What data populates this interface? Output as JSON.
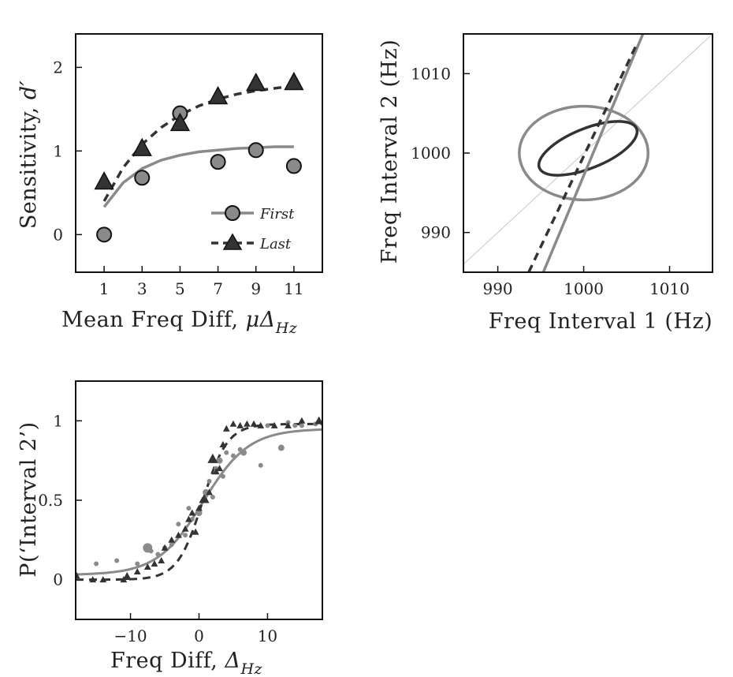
{
  "colors": {
    "first": "#8a8a8a",
    "last": "#333333",
    "ink": "#111111",
    "diag": "#c8c8c8"
  },
  "chart_data": [
    {
      "id": "sensitivity",
      "type": "scatter",
      "xlabel": "Mean Freq Diff, ",
      "xlabel_math": "μΔ",
      "xlabel_sub": "Hz",
      "ylabel": "Sensitivity, ",
      "ylabel_math": "d′",
      "xlim": [
        -0.5,
        12.5
      ],
      "ylim": [
        -0.45,
        2.4
      ],
      "xticks": [
        1,
        3,
        5,
        7,
        9,
        11
      ],
      "yticks": [
        0,
        1,
        2
      ],
      "legend_position": "bottom-right",
      "series": [
        {
          "name": "First",
          "marker": "circle",
          "line": "solid",
          "x": [
            1,
            3,
            5,
            7,
            9,
            11
          ],
          "y": [
            0.0,
            0.68,
            1.45,
            0.87,
            1.01,
            0.82
          ],
          "fit_x": [
            1,
            2,
            3,
            4,
            5,
            6,
            7,
            8,
            9,
            10,
            11
          ],
          "fit_y": [
            0.33,
            0.62,
            0.79,
            0.89,
            0.95,
            0.99,
            1.01,
            1.03,
            1.04,
            1.05,
            1.05
          ]
        },
        {
          "name": "Last",
          "marker": "triangle",
          "line": "dashed",
          "x": [
            1,
            3,
            5,
            7,
            9,
            11
          ],
          "y": [
            0.63,
            1.03,
            1.33,
            1.65,
            1.81,
            1.82
          ],
          "fit_x": [
            1,
            2,
            3,
            4,
            5,
            6,
            7,
            8,
            9,
            10,
            11
          ],
          "fit_y": [
            0.4,
            0.8,
            1.08,
            1.28,
            1.43,
            1.54,
            1.62,
            1.68,
            1.72,
            1.75,
            1.78
          ]
        }
      ]
    },
    {
      "id": "ellipses",
      "type": "line",
      "xlabel": "Freq Interval 1 (Hz)",
      "ylabel": "Freq Interval 2 (Hz)",
      "xlim": [
        986,
        1015
      ],
      "ylim": [
        985,
        1015
      ],
      "xticks": [
        990,
        1000,
        1010
      ],
      "yticks": [
        990,
        1000,
        1010
      ],
      "reference_diagonal": true,
      "ellipses": [
        {
          "name": "First",
          "cx": 1000,
          "cy": 1000,
          "rx": 7.5,
          "ry": 5.9,
          "angle_deg": 0
        },
        {
          "name": "Last",
          "cx": 1000.5,
          "cy": 1000.6,
          "rx": 6.1,
          "ry": 2.5,
          "angle_deg": 22
        }
      ],
      "boundaries": [
        {
          "name": "First",
          "line": "solid",
          "x": [
            995.3,
            1006.9
          ],
          "y": [
            985,
            1015
          ]
        },
        {
          "name": "Last",
          "line": "dashed",
          "x": [
            993.6,
            1006.3
          ],
          "y": [
            985,
            1014
          ]
        }
      ]
    },
    {
      "id": "psychometric",
      "type": "scatter",
      "xlabel": "Freq Diff, ",
      "xlabel_math": "Δ",
      "xlabel_sub": "Hz",
      "ylabel": "P(‘Interval 2’)",
      "xlim": [
        -18,
        18
      ],
      "ylim": [
        -0.25,
        1.25
      ],
      "xticks": [
        -10,
        0,
        10
      ],
      "ytick_values": [
        0,
        0.5,
        1
      ],
      "ytick_labels": [
        "0",
        "0.5",
        "1"
      ],
      "series": [
        {
          "name": "First",
          "marker": "circle",
          "line": "solid",
          "curve": {
            "mid": 0.6,
            "slope": 0.3,
            "lower": 0.03,
            "upper": 0.95
          },
          "points": [
            [
              -15,
              0.1,
              3
            ],
            [
              -12,
              0.12,
              3
            ],
            [
              -9,
              0.1,
              3
            ],
            [
              -7,
              0.18,
              3
            ],
            [
              -6,
              0.16,
              3
            ],
            [
              -5,
              0.2,
              3
            ],
            [
              -7.5,
              0.2,
              6
            ],
            [
              -4,
              0.22,
              3
            ],
            [
              -3,
              0.35,
              3
            ],
            [
              -2,
              0.28,
              3
            ],
            [
              -1,
              0.38,
              3
            ],
            [
              -1.5,
              0.45,
              3
            ],
            [
              0,
              0.42,
              4
            ],
            [
              1,
              0.55,
              4
            ],
            [
              1.5,
              0.62,
              3
            ],
            [
              2,
              0.52,
              3
            ],
            [
              2.5,
              0.7,
              3
            ],
            [
              3,
              0.75,
              4
            ],
            [
              3.5,
              0.65,
              3
            ],
            [
              4,
              0.8,
              3
            ],
            [
              5,
              0.78,
              3
            ],
            [
              6,
              0.82,
              3
            ],
            [
              6.5,
              0.8,
              4
            ],
            [
              9,
              0.72,
              3
            ],
            [
              10,
              0.97,
              3
            ],
            [
              12,
              0.83,
              4
            ],
            [
              13,
              0.99,
              3
            ],
            [
              14,
              0.97,
              3
            ],
            [
              15,
              0.97,
              3
            ],
            [
              17,
              0.98,
              3
            ]
          ]
        },
        {
          "name": "Last",
          "marker": "triangle",
          "line": "dashed",
          "curve": {
            "mid": 0.5,
            "slope": 0.55,
            "lower": 0.0,
            "upper": 0.98
          },
          "points": [
            [
              -18,
              0.03,
              5
            ],
            [
              -15.5,
              0.0,
              4
            ],
            [
              -14,
              0.0,
              4
            ],
            [
              -11,
              0.0,
              4
            ],
            [
              -10.5,
              0.02,
              5
            ],
            [
              -9,
              0.05,
              4
            ],
            [
              -7.5,
              0.08,
              4
            ],
            [
              -6.5,
              0.1,
              4
            ],
            [
              -5.5,
              0.12,
              4
            ],
            [
              -5,
              0.2,
              4
            ],
            [
              -4,
              0.25,
              4
            ],
            [
              -3,
              0.28,
              4
            ],
            [
              -2,
              0.32,
              4
            ],
            [
              -1.5,
              0.38,
              4
            ],
            [
              -1,
              0.42,
              4
            ],
            [
              -0.5,
              0.3,
              4
            ],
            [
              0,
              0.45,
              4
            ],
            [
              0.5,
              0.5,
              4
            ],
            [
              1,
              0.5,
              4
            ],
            [
              1.5,
              0.55,
              4
            ],
            [
              2,
              0.76,
              6
            ],
            [
              2.5,
              0.68,
              4
            ],
            [
              3,
              0.7,
              4
            ],
            [
              3.5,
              0.85,
              4
            ],
            [
              4,
              0.95,
              4
            ],
            [
              5,
              0.98,
              4
            ],
            [
              6,
              0.97,
              4
            ],
            [
              7,
              0.98,
              4
            ],
            [
              8,
              0.98,
              4
            ],
            [
              9,
              0.97,
              4
            ],
            [
              11,
              0.97,
              4
            ],
            [
              13,
              0.97,
              4
            ],
            [
              15,
              1.0,
              4
            ],
            [
              17.5,
              1.0,
              5
            ]
          ]
        }
      ]
    }
  ]
}
